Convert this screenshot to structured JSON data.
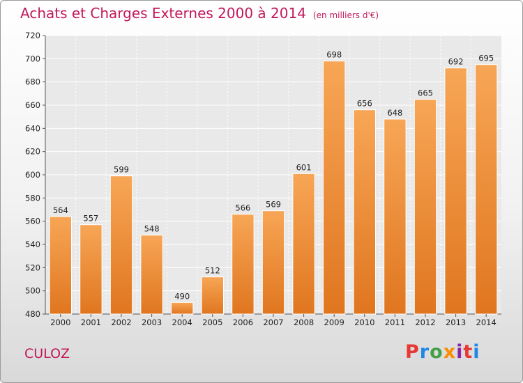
{
  "chart_data": {
    "type": "bar",
    "title": "Achats et Charges Externes 2000 à 2014",
    "subtitle": "(en milliers d'€)",
    "categories": [
      "2000",
      "2001",
      "2002",
      "2003",
      "2004",
      "2005",
      "2006",
      "2007",
      "2008",
      "2009",
      "2010",
      "2011",
      "2012",
      "2013",
      "2014"
    ],
    "values": [
      564,
      557,
      599,
      548,
      490,
      512,
      566,
      569,
      601,
      698,
      656,
      648,
      665,
      692,
      695
    ],
    "ylim": [
      480,
      720
    ],
    "yticks": [
      480,
      500,
      520,
      540,
      560,
      580,
      600,
      620,
      640,
      660,
      680,
      700,
      720
    ],
    "grid": true,
    "bar_color_light": "#f7a656",
    "bar_color_dark": "#e0761f"
  },
  "footer": {
    "location": "CULOZ",
    "logo": "Proxiti",
    "logo_colors": [
      "#e53935",
      "#1e88e5",
      "#43a047",
      "#fb8c00",
      "#8e24aa",
      "#e53935",
      "#1e88e5"
    ]
  },
  "colors": {
    "title": "#c2185b"
  }
}
